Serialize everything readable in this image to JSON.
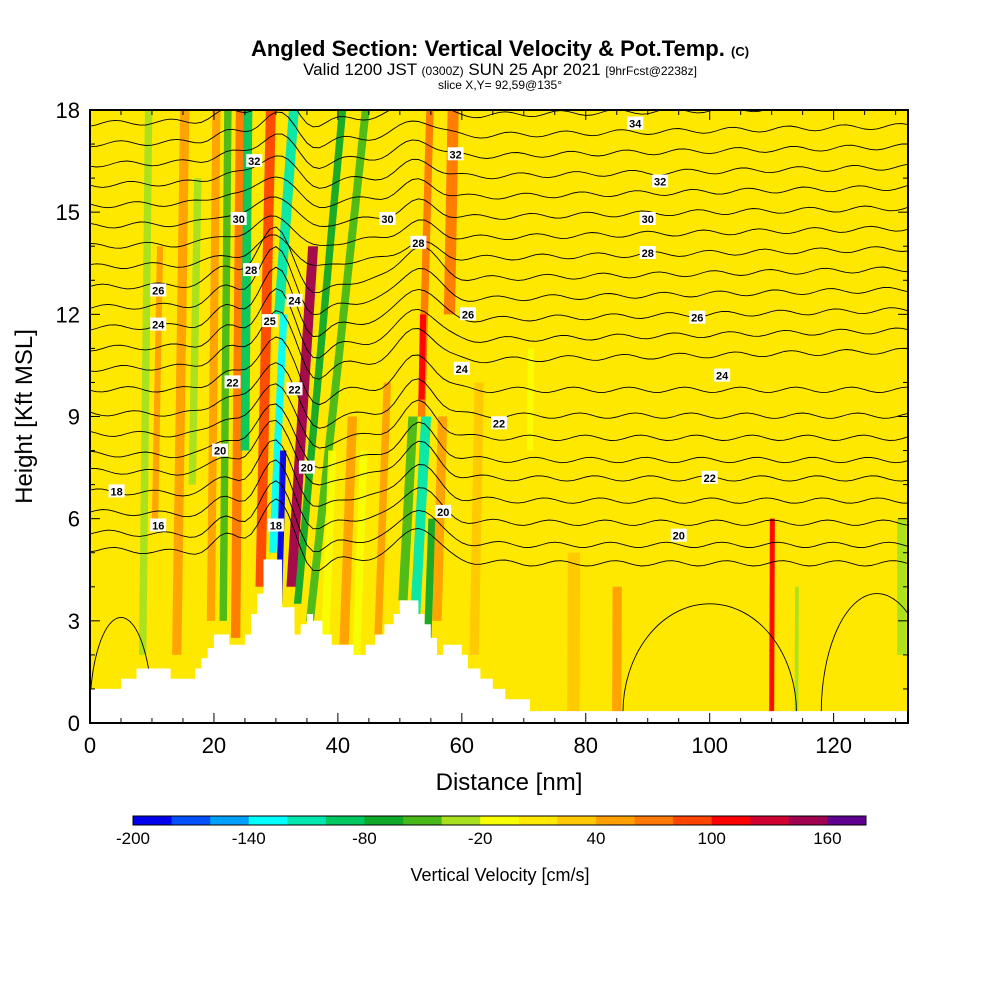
{
  "header": {
    "title_main": "Angled Section: Vertical Velocity & Pot.Temp.",
    "title_units": "(C)",
    "valid_a": "Valid 1200 JST",
    "valid_z": "(0300Z)",
    "valid_b": "SUN 25 Apr 2021",
    "valid_fcst": "[9hrFcst@2238z]",
    "slice": "slice X,Y= 92,59@135°"
  },
  "chart_data": {
    "type": "heatmap",
    "xlabel": "Distance [nm]",
    "ylabel": "Height [Kft MSL]",
    "xlim": [
      0,
      132
    ],
    "ylim": [
      0,
      18
    ],
    "x_ticks": [
      0,
      20,
      40,
      60,
      80,
      100,
      120
    ],
    "y_ticks": [
      0,
      3,
      6,
      9,
      12,
      15,
      18
    ],
    "colorbar": {
      "title": "Vertical Velocity [cm/s]",
      "levels": [
        -200,
        -180,
        -160,
        -140,
        -120,
        -100,
        -80,
        -60,
        -40,
        -20,
        0,
        20,
        40,
        60,
        80,
        100,
        120,
        140,
        160,
        180
      ],
      "tick_labels": [
        "-200",
        "-140",
        "-80",
        "-20",
        "40",
        "100",
        "160"
      ],
      "colors": [
        "#0000ee",
        "#0050ff",
        "#00a0ff",
        "#00ffff",
        "#00e8b0",
        "#00c860",
        "#10a828",
        "#48b818",
        "#a8e020",
        "#f8ff00",
        "#ffe800",
        "#ffc800",
        "#ffa000",
        "#ff7800",
        "#ff4400",
        "#ff0000",
        "#d00030",
        "#a00050",
        "#600090"
      ]
    },
    "background_level": "#ffe800",
    "terrain": [
      [
        0,
        1.0
      ],
      [
        5,
        1.0
      ],
      [
        5,
        1.3
      ],
      [
        7.5,
        1.3
      ],
      [
        7.5,
        1.6
      ],
      [
        13,
        1.6
      ],
      [
        13,
        1.3
      ],
      [
        17,
        1.3
      ],
      [
        17,
        1.6
      ],
      [
        18,
        1.6
      ],
      [
        18,
        1.9
      ],
      [
        19,
        1.9
      ],
      [
        19,
        2.2
      ],
      [
        20,
        2.2
      ],
      [
        20,
        2.6
      ],
      [
        22.5,
        2.6
      ],
      [
        22.5,
        2.3
      ],
      [
        25,
        2.3
      ],
      [
        25,
        2.6
      ],
      [
        26,
        2.6
      ],
      [
        26,
        3.2
      ],
      [
        27,
        3.2
      ],
      [
        27,
        3.8
      ],
      [
        28,
        3.8
      ],
      [
        28,
        4.8
      ],
      [
        31,
        4.8
      ],
      [
        31,
        3.4
      ],
      [
        33,
        3.4
      ],
      [
        33,
        2.6
      ],
      [
        34,
        2.6
      ],
      [
        34,
        2.9
      ],
      [
        35,
        2.9
      ],
      [
        35,
        3.2
      ],
      [
        36,
        3.2
      ],
      [
        36,
        3.0
      ],
      [
        37.5,
        3.0
      ],
      [
        37.5,
        2.6
      ],
      [
        39,
        2.6
      ],
      [
        39,
        2.3
      ],
      [
        42.5,
        2.3
      ],
      [
        42.5,
        2.0
      ],
      [
        44.5,
        2.0
      ],
      [
        44.5,
        2.3
      ],
      [
        46,
        2.3
      ],
      [
        46,
        2.6
      ],
      [
        47.5,
        2.6
      ],
      [
        47.5,
        2.9
      ],
      [
        49,
        2.9
      ],
      [
        49,
        3.2
      ],
      [
        50,
        3.2
      ],
      [
        50,
        3.6
      ],
      [
        53,
        3.6
      ],
      [
        53,
        3.2
      ],
      [
        54,
        3.2
      ],
      [
        54,
        2.9
      ],
      [
        55,
        2.9
      ],
      [
        55,
        2.5
      ],
      [
        56,
        2.5
      ],
      [
        56,
        2.0
      ],
      [
        57,
        2.0
      ],
      [
        57,
        2.3
      ],
      [
        60,
        2.3
      ],
      [
        60,
        2.0
      ],
      [
        61,
        2.0
      ],
      [
        61,
        1.6
      ],
      [
        63,
        1.6
      ],
      [
        63,
        1.3
      ],
      [
        65,
        1.3
      ],
      [
        65,
        1.0
      ],
      [
        67,
        1.0
      ],
      [
        67,
        0.7
      ],
      [
        71,
        0.7
      ],
      [
        71,
        0.35
      ],
      [
        132,
        0.35
      ]
    ],
    "bands": [
      {
        "x": 8.5,
        "w": 1.2,
        "y0": 2,
        "y1": 18,
        "v": -40,
        "slope": 0.06
      },
      {
        "x": 10.5,
        "w": 1.0,
        "y0": 6,
        "y1": 14,
        "v": 40,
        "slope": 0.1
      },
      {
        "x": 14,
        "w": 1.5,
        "y0": 2,
        "y1": 18,
        "v": 40,
        "slope": 0.08
      },
      {
        "x": 16.5,
        "w": 1.2,
        "y0": 7,
        "y1": 16,
        "v": -40,
        "slope": 0.1
      },
      {
        "x": 19.5,
        "w": 1.3,
        "y0": 3,
        "y1": 18,
        "v": 40,
        "slope": 0.06
      },
      {
        "x": 21.5,
        "w": 1.2,
        "y0": 3,
        "y1": 18,
        "v": -60,
        "slope": 0.05
      },
      {
        "x": 23.5,
        "w": 1.5,
        "y0": 2.5,
        "y1": 18,
        "v": 60,
        "slope": 0.05
      },
      {
        "x": 25,
        "w": 1.4,
        "y0": 8,
        "y1": 18,
        "v": -100,
        "slope": 0.05
      },
      {
        "x": 27.5,
        "w": 1.6,
        "y0": 4,
        "y1": 18,
        "v": 80,
        "slope": 0.12
      },
      {
        "x": 29.5,
        "w": 1.2,
        "y0": 5,
        "y1": 12,
        "v": -140,
        "slope": 0.25
      },
      {
        "x": 30.5,
        "w": 1.0,
        "y0": 3.5,
        "y1": 8,
        "v": -200,
        "slope": 0.15
      },
      {
        "x": 32.5,
        "w": 1.6,
        "y0": 4,
        "y1": 14,
        "v": 140,
        "slope": 0.35
      },
      {
        "x": 30.5,
        "w": 1.6,
        "y0": 12,
        "y1": 18,
        "v": -120,
        "slope": 0.4
      },
      {
        "x": 33.5,
        "w": 1.2,
        "y0": 3.5,
        "y1": 18,
        "v": -80,
        "slope": 0.5
      },
      {
        "x": 35.5,
        "w": 1.3,
        "y0": 3,
        "y1": 18,
        "v": -60,
        "slope": 0.6
      },
      {
        "x": 38,
        "w": 1.3,
        "y0": 2.5,
        "y1": 8,
        "v": -20,
        "slope": 0.2
      },
      {
        "x": 41,
        "w": 1.5,
        "y0": 2.3,
        "y1": 9,
        "v": 40,
        "slope": 0.2
      },
      {
        "x": 43,
        "w": 1.2,
        "y0": 2.0,
        "y1": 8,
        "v": -20,
        "slope": 0.2
      },
      {
        "x": 46.5,
        "w": 1.2,
        "y0": 2.6,
        "y1": 10,
        "v": 40,
        "slope": 0.2
      },
      {
        "x": 50.5,
        "w": 1.5,
        "y0": 3.6,
        "y1": 9,
        "v": -60,
        "slope": 0.3
      },
      {
        "x": 52.5,
        "w": 1.6,
        "y0": 3.2,
        "y1": 9,
        "v": -120,
        "slope": 0.3
      },
      {
        "x": 54.5,
        "w": 1.2,
        "y0": 2.5,
        "y1": 6,
        "v": -80,
        "slope": 0.2
      },
      {
        "x": 53.5,
        "w": 1.2,
        "y0": 9,
        "y1": 18,
        "v": 60,
        "slope": 0.15
      },
      {
        "x": 53.5,
        "w": 1.0,
        "y0": 9.5,
        "y1": 12,
        "v": 100,
        "slope": 0.1
      },
      {
        "x": 58,
        "w": 1.8,
        "y0": 12,
        "y1": 18,
        "v": 60,
        "slope": 0.1
      },
      {
        "x": 56,
        "w": 1.5,
        "y0": 3,
        "y1": 9,
        "v": 40,
        "slope": 0.15
      },
      {
        "x": 62,
        "w": 1.5,
        "y0": 2.0,
        "y1": 10,
        "v": 20,
        "slope": 0.1
      },
      {
        "x": 68,
        "w": 1.5,
        "y0": 1,
        "y1": 12,
        "v": 0,
        "slope": 0.05
      },
      {
        "x": 71,
        "w": 1.0,
        "y0": 8,
        "y1": 11,
        "v": -20,
        "slope": 0.05
      },
      {
        "x": 78,
        "w": 2.0,
        "y0": 0.3,
        "y1": 5,
        "v": 20,
        "slope": 0.02
      },
      {
        "x": 85,
        "w": 1.5,
        "y0": 0.3,
        "y1": 4,
        "v": 40,
        "slope": 0.02
      },
      {
        "x": 110,
        "w": 0.8,
        "y0": 0.3,
        "y1": 6,
        "v": 100,
        "slope": 0.02
      },
      {
        "x": 114,
        "w": 0.6,
        "y0": 0.3,
        "y1": 4,
        "v": -40,
        "slope": 0.02
      },
      {
        "x": 131,
        "w": 1.5,
        "y0": 2,
        "y1": 6,
        "v": -40,
        "slope": 0.0
      }
    ],
    "isentropes": [
      {
        "y": 5.1,
        "label": null
      },
      {
        "y": 5.6,
        "label": "16"
      },
      {
        "y": 6.2,
        "label": "18"
      },
      {
        "y": 6.8,
        "label": null
      },
      {
        "y": 7.4,
        "label": "20"
      },
      {
        "y": 7.9,
        "label": null
      },
      {
        "y": 8.5,
        "label": "20"
      },
      {
        "y": 9.1,
        "label": "22"
      },
      {
        "y": 9.8,
        "label": null
      },
      {
        "y": 10.4,
        "label": "22"
      },
      {
        "y": 11.0,
        "label": null
      },
      {
        "y": 11.6,
        "label": "24"
      },
      {
        "y": 12.2,
        "label": "24"
      },
      {
        "y": 12.8,
        "label": "26"
      },
      {
        "y": 13.4,
        "label": null
      },
      {
        "y": 14.0,
        "label": "28"
      },
      {
        "y": 14.6,
        "label": null
      },
      {
        "y": 15.2,
        "label": "30"
      },
      {
        "y": 15.8,
        "label": null
      },
      {
        "y": 16.4,
        "label": "32"
      },
      {
        "y": 17.0,
        "label": null
      },
      {
        "y": 17.6,
        "label": "34"
      }
    ],
    "contour_labels": [
      {
        "x": 4.3,
        "y": 6.8,
        "text": "18"
      },
      {
        "x": 11,
        "y": 5.8,
        "text": "16"
      },
      {
        "x": 21,
        "y": 8.0,
        "text": "20"
      },
      {
        "x": 23,
        "y": 10.0,
        "text": "22"
      },
      {
        "x": 11,
        "y": 12.7,
        "text": "26"
      },
      {
        "x": 11,
        "y": 11.7,
        "text": "24"
      },
      {
        "x": 26.5,
        "y": 16.5,
        "text": "32"
      },
      {
        "x": 24,
        "y": 14.8,
        "text": "30"
      },
      {
        "x": 26,
        "y": 13.3,
        "text": "28"
      },
      {
        "x": 29,
        "y": 11.8,
        "text": "25"
      },
      {
        "x": 33,
        "y": 12.4,
        "text": "24"
      },
      {
        "x": 33,
        "y": 9.8,
        "text": "22"
      },
      {
        "x": 35,
        "y": 7.5,
        "text": "20"
      },
      {
        "x": 30,
        "y": 5.8,
        "text": "18"
      },
      {
        "x": 48,
        "y": 14.8,
        "text": "30"
      },
      {
        "x": 53,
        "y": 14.1,
        "text": "28"
      },
      {
        "x": 59,
        "y": 16.7,
        "text": "32"
      },
      {
        "x": 61,
        "y": 12.0,
        "text": "26"
      },
      {
        "x": 60,
        "y": 10.4,
        "text": "24"
      },
      {
        "x": 66,
        "y": 8.8,
        "text": "22"
      },
      {
        "x": 57,
        "y": 6.2,
        "text": "20"
      },
      {
        "x": 88,
        "y": 17.6,
        "text": "34"
      },
      {
        "x": 92,
        "y": 15.9,
        "text": "32"
      },
      {
        "x": 90,
        "y": 14.8,
        "text": "30"
      },
      {
        "x": 90,
        "y": 13.8,
        "text": "28"
      },
      {
        "x": 98,
        "y": 11.9,
        "text": "26"
      },
      {
        "x": 102,
        "y": 10.2,
        "text": "24"
      },
      {
        "x": 100,
        "y": 7.2,
        "text": "22"
      },
      {
        "x": 95,
        "y": 5.5,
        "text": "20"
      }
    ]
  }
}
